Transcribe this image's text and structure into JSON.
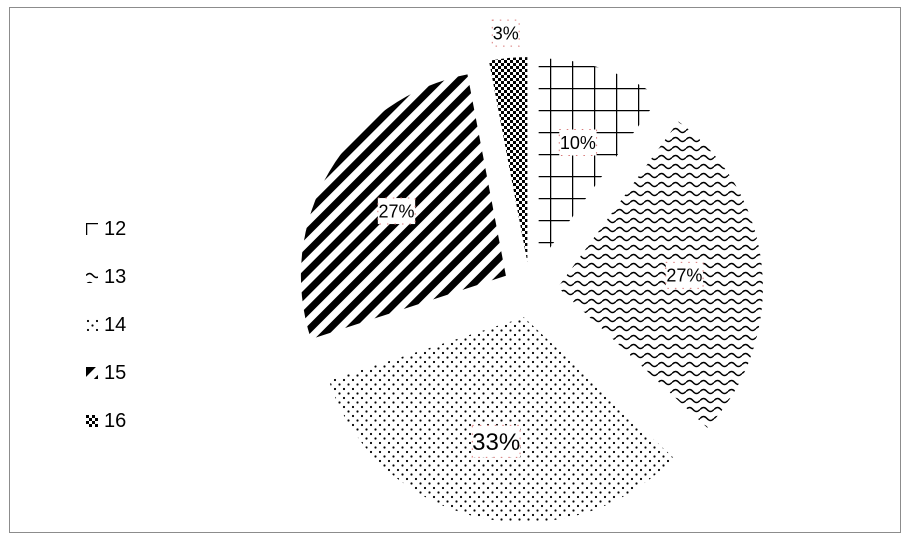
{
  "chart_data": {
    "type": "pie",
    "title": "",
    "legend_position": "left",
    "exploded": true,
    "categories": [
      "12",
      "13",
      "14",
      "15",
      "16"
    ],
    "values": [
      10,
      27,
      33,
      27,
      3
    ],
    "labels": [
      "10%",
      "27%",
      "33%",
      "27%",
      "3%"
    ],
    "patterns": [
      "grid",
      "wave",
      "dots",
      "diagonal-stripes",
      "checker"
    ]
  }
}
